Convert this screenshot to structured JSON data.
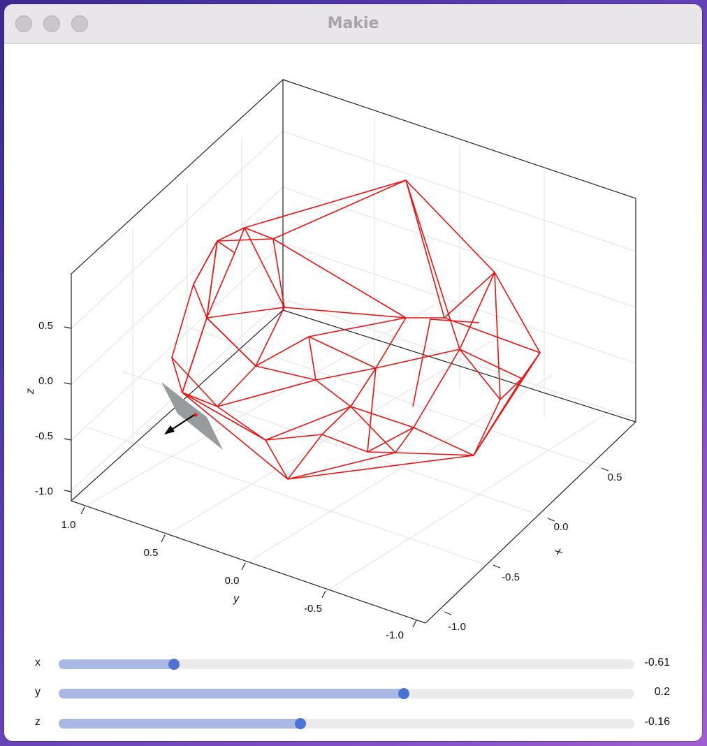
{
  "window": {
    "title": "Makie"
  },
  "axes": {
    "x": {
      "label": "x",
      "ticks": [
        "-1.0",
        "-0.5",
        "0.0",
        "0.5"
      ]
    },
    "y": {
      "label": "y",
      "ticks": [
        "1.0",
        "0.5",
        "0.0",
        "-0.5",
        "-1.0"
      ]
    },
    "z": {
      "label": "z",
      "ticks": [
        "0.5",
        "0.0",
        "-0.5",
        "-1.0"
      ]
    }
  },
  "wireframe_color": "#ee1111",
  "plane_color": "#969c9e",
  "sliders": [
    {
      "label": "x",
      "value": "-0.61",
      "fraction": 0.2
    },
    {
      "label": "y",
      "value": "0.2",
      "fraction": 0.6
    },
    {
      "label": "z",
      "value": "-0.16",
      "fraction": 0.42
    }
  ]
}
